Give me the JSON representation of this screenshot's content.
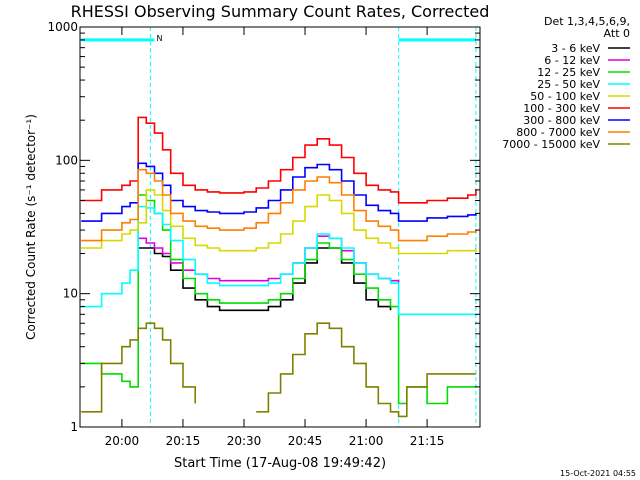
{
  "chart_data": {
    "type": "line",
    "title": "RHESSI Observing Summary Count Rates, Corrected",
    "xlabel": "Start Time (17-Aug-08 19:49:42)",
    "ylabel": "Corrected Count Rate (s⁻¹ detector⁻¹)",
    "y_scale": "log",
    "ylim": [
      1,
      1000
    ],
    "xlim": [
      "19:49:42",
      "21:28:00"
    ],
    "x_ticks": [
      "20:00",
      "20:15",
      "20:30",
      "20:45",
      "21:00",
      "21:15"
    ],
    "y_ticks": [
      "1",
      "10",
      "100",
      "1000"
    ],
    "legend_header": [
      "Det 1,3,4,5,6,9,",
      "Att 0"
    ],
    "legend_position": "right",
    "footer": "15-Oct-2021 04:55",
    "annotations": [
      {
        "text": "N",
        "x": "20:08",
        "y": 1000
      }
    ],
    "markers": {
      "vertical_dashed_x": [
        "20:07",
        "21:08",
        "21:27"
      ],
      "cyan_bar": [
        [
          "19:50",
          "20:08",
          800
        ],
        [
          "21:08",
          "21:27",
          800
        ]
      ]
    },
    "x": [
      "19:50",
      "19:55",
      "20:00",
      "20:02",
      "20:04",
      "20:06",
      "20:08",
      "20:10",
      "20:12",
      "20:15",
      "20:18",
      "20:21",
      "20:24",
      "20:27",
      "20:30",
      "20:33",
      "20:36",
      "20:39",
      "20:42",
      "20:45",
      "20:48",
      "20:51",
      "20:54",
      "20:57",
      "21:00",
      "21:03",
      "21:06",
      "21:08",
      "21:10",
      "21:15",
      "21:20",
      "21:25",
      "21:27"
    ],
    "series": [
      {
        "name": "3 - 6 keV",
        "color": "#000000",
        "values": [
          null,
          null,
          null,
          null,
          22,
          22,
          20,
          19,
          15,
          11,
          9,
          8,
          7.5,
          7.5,
          7.5,
          7.5,
          8,
          9,
          12,
          17,
          22,
          22,
          17,
          12,
          9,
          8,
          7.5,
          null,
          null,
          null,
          null,
          null,
          null
        ]
      },
      {
        "name": "6 - 12 keV",
        "color": "#e000e0",
        "values": [
          null,
          null,
          null,
          null,
          26,
          24,
          22,
          20,
          17,
          15,
          14,
          13,
          12.5,
          12.5,
          12.5,
          12.5,
          13,
          14,
          17,
          22,
          27,
          26,
          21,
          17,
          14,
          13,
          12.5,
          12,
          null,
          null,
          null,
          null,
          null
        ]
      },
      {
        "name": "12 - 25 keV",
        "color": "#00dd00",
        "values": [
          3,
          2.5,
          2.2,
          2,
          55,
          50,
          40,
          30,
          18,
          13,
          10,
          9,
          8.5,
          8.5,
          8.5,
          8.5,
          9,
          10,
          13,
          18,
          24,
          22,
          18,
          14,
          11,
          9,
          8,
          1.5,
          2,
          1.5,
          2,
          2,
          2
        ]
      },
      {
        "name": "25 - 50 keV",
        "color": "#00ffff",
        "values": [
          8,
          10,
          12,
          15,
          45,
          44,
          40,
          33,
          25,
          18,
          14,
          12,
          11.5,
          11.5,
          11.5,
          11.5,
          12,
          14,
          17,
          22,
          28,
          26,
          22,
          17,
          14,
          13,
          12,
          7,
          7,
          7,
          7,
          7,
          7
        ]
      },
      {
        "name": "50 - 100 keV",
        "color": "#d8d800",
        "values": [
          22,
          25,
          28,
          30,
          34,
          60,
          55,
          42,
          32,
          26,
          23,
          22,
          21,
          21,
          21,
          22,
          24,
          28,
          35,
          45,
          55,
          50,
          40,
          30,
          26,
          24,
          22,
          20,
          20,
          20,
          21,
          21,
          22
        ]
      },
      {
        "name": "100 - 300 keV",
        "color": "#ff0000",
        "values": [
          50,
          60,
          65,
          70,
          210,
          190,
          160,
          120,
          80,
          65,
          60,
          58,
          57,
          57,
          58,
          62,
          70,
          85,
          105,
          130,
          145,
          130,
          105,
          80,
          65,
          60,
          58,
          48,
          48,
          50,
          52,
          55,
          60
        ]
      },
      {
        "name": "300 - 800 keV",
        "color": "#0000ff",
        "values": [
          35,
          40,
          45,
          48,
          95,
          90,
          80,
          65,
          50,
          45,
          42,
          41,
          40,
          40,
          41,
          44,
          50,
          60,
          75,
          88,
          93,
          85,
          70,
          55,
          46,
          42,
          40,
          35,
          35,
          37,
          38,
          39,
          40
        ]
      },
      {
        "name": "800 - 7000 keV",
        "color": "#ff7f00",
        "values": [
          25,
          30,
          34,
          36,
          85,
          80,
          70,
          55,
          40,
          35,
          32,
          31,
          30,
          30,
          31,
          34,
          40,
          48,
          60,
          70,
          75,
          68,
          55,
          42,
          35,
          32,
          30,
          25,
          25,
          27,
          28,
          29,
          30
        ]
      },
      {
        "name": "7000 - 15000 keV",
        "color": "#808000",
        "values": [
          1.3,
          3,
          4,
          4.5,
          5.5,
          6,
          5.5,
          4.5,
          3,
          2,
          1.5,
          null,
          null,
          null,
          null,
          1.3,
          1.8,
          2.5,
          3.5,
          5,
          6,
          5.5,
          4,
          3,
          2,
          1.5,
          1.3,
          1.2,
          2,
          2.5,
          2.5,
          2.5,
          2.5
        ]
      }
    ]
  }
}
